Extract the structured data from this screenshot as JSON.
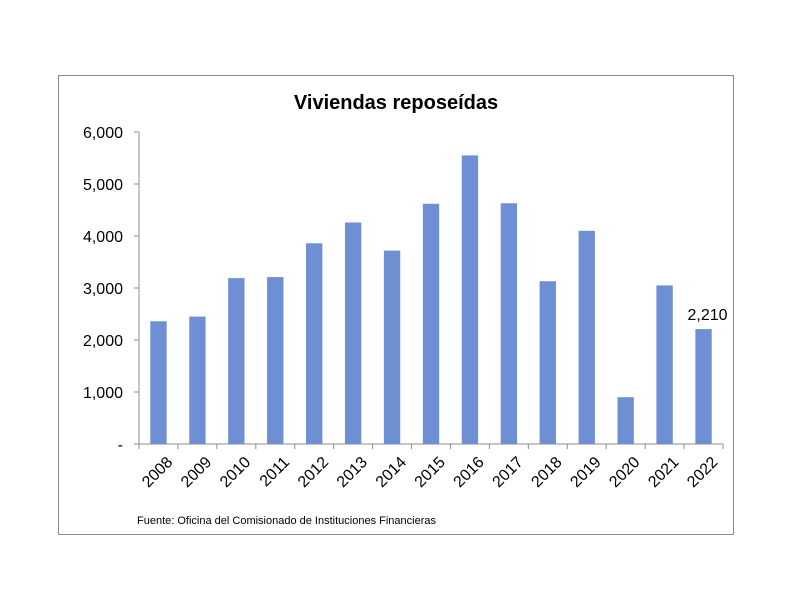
{
  "chart_data": {
    "type": "bar",
    "title": "Viviendas reposeídas",
    "xlabel": "",
    "ylabel": "",
    "categories": [
      "2008",
      "2009",
      "2010",
      "2011",
      "2012",
      "2013",
      "2014",
      "2015",
      "2016",
      "2017",
      "2018",
      "2019",
      "2020",
      "2021",
      "2022"
    ],
    "values": [
      2360,
      2450,
      3190,
      3210,
      3860,
      4260,
      3720,
      4620,
      5550,
      4630,
      3130,
      4100,
      900,
      3050,
      2210
    ],
    "ylim": [
      0,
      6000
    ],
    "yticks": [
      0,
      1000,
      2000,
      3000,
      4000,
      5000,
      6000
    ],
    "ytick_labels": [
      "-",
      "1,000",
      "2,000",
      "3,000",
      "4,000",
      "5,000",
      "6,000"
    ],
    "data_labels": [
      {
        "category": "2022",
        "text": "2,210"
      }
    ],
    "bar_color": "#6f8fd4",
    "grid": false,
    "legend": "none",
    "source": "Fuente: Oficina  del Comisionado  de Instituciones  Financieras"
  }
}
